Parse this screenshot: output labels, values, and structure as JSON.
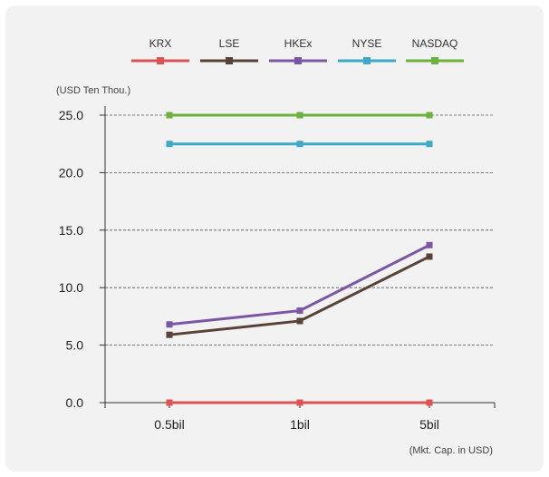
{
  "chart_data": {
    "type": "line",
    "categories": [
      "0.5bil",
      "1bil",
      "5bil"
    ],
    "series": [
      {
        "name": "KRX",
        "color": "#e05252",
        "values": [
          0.0,
          0.0,
          0.0
        ]
      },
      {
        "name": "LSE",
        "color": "#5a4237",
        "values": [
          5.9,
          7.1,
          12.7
        ]
      },
      {
        "name": "HKEx",
        "color": "#7b55a8",
        "values": [
          6.8,
          8.0,
          13.7
        ]
      },
      {
        "name": "NYSE",
        "color": "#3aaac8",
        "values": [
          22.5,
          22.5,
          22.5
        ]
      },
      {
        "name": "NASDAQ",
        "color": "#6bb33a",
        "values": [
          25.0,
          25.0,
          25.0
        ]
      }
    ],
    "y_ticks": [
      "0.0",
      "5.0",
      "10.0",
      "15.0",
      "20.0",
      "25.0"
    ],
    "ylim": [
      0,
      25
    ],
    "ylabel": "(USD Ten Thou.)",
    "xlabel": "(Mkt. Cap. in USD)",
    "grid": "horizontal-dashed",
    "legend_position": "top"
  }
}
